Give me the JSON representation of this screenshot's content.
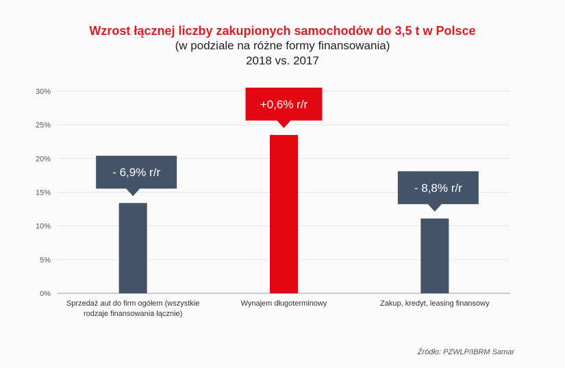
{
  "title": "Wzrost łącznej liczby zakupionych samochodów do 3,5 t w Polsce",
  "subtitle1": "(w podziale na różne formy finansowania)",
  "subtitle2": "2018 vs. 2017",
  "source": "Źródło: PZWLP/IBRM Samar",
  "colors": {
    "bar_default": "#435369",
    "bar_highlight": "#e30613",
    "grid": "#e6e6e6",
    "axis": "#999999"
  },
  "chart_data": {
    "type": "bar",
    "ylim": [
      0,
      30
    ],
    "yticks": [
      "0%",
      "5%",
      "10%",
      "15%",
      "20%",
      "25%",
      "30%"
    ],
    "ytick_values": [
      0,
      5,
      10,
      15,
      20,
      25,
      30
    ],
    "grid": true,
    "categories": [
      [
        "Sprzedaż aut do firm ogółem (wszystkie",
        "rodzaje finansowania łącznie)"
      ],
      [
        "Wynajem długoterminowy"
      ],
      [
        "Zakup, kredyt, leasing finansowy"
      ]
    ],
    "values": [
      13.4,
      23.5,
      11.1
    ],
    "highlight_index": 1,
    "annotations": [
      "- 6,9% r/r",
      "+0,6% r/r",
      "- 8,8% r/r"
    ]
  }
}
